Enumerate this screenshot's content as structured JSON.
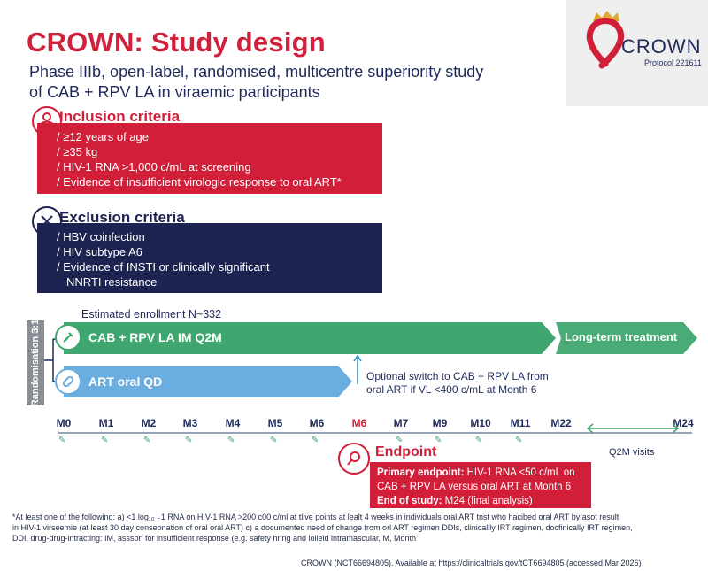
{
  "header": {
    "title": "CROWN: Study design",
    "subtitle_line1": "Phase IIIb, open-label, randomised, multicentre superiority study",
    "subtitle_line2": "of CAB + RPV LA in  viraemic participants"
  },
  "logo": {
    "name": "CROWN",
    "protocol": "Protocol 221611"
  },
  "inclusion": {
    "title": "Inclusion criteria",
    "items": [
      "≥12 years of age",
      "≥35 kg",
      "HIV-1 RNA >1,000 c/mL at screening",
      "Evidence of insufficient virologic response to oral ART*"
    ]
  },
  "exclusion": {
    "title": "Exclusion criteria",
    "items": [
      "HBV coinfection",
      "HIV subtype A6",
      "Evidence of INSTI or clinically significant",
      "NNRTI resistance"
    ]
  },
  "timeline": {
    "randomisation": "Randomisation 3:1",
    "enrollment": "Estimated enrollment N~332",
    "arm1": "CAB + RPV LA IM Q2M",
    "arm1_extension": "Long-term treatment",
    "arm2": "ART oral QD",
    "switch_line1": "Optional switch to CAB + RPV LA from",
    "switch_line2": "oral ART if VL <400 c/mL at Month 6",
    "ticks": [
      "M0",
      "M1",
      "M2",
      "M3",
      "M4",
      "M5",
      "M6",
      "M6",
      "M7",
      "M9",
      "M10",
      "M11",
      "M22",
      "M24"
    ],
    "q2m": "Q2M visits"
  },
  "endpoint": {
    "title": "Endpoint",
    "primary_label": "Primary endpoint:",
    "primary_text1": " HIV-1 RNA <50 c/mL on",
    "primary_text2": "CAB + RPV LA versus oral ART at Month 6",
    "end_label": "End of study:",
    "end_text": " M24 (final analysis)"
  },
  "footnote": {
    "line1": "*At least one of the following: a) <1 log₁₀ ₋1 RNA on HIV-1 RNA >200 c00 c/ml at tlive points at lealt 4 weeks in individuals oral ART tnst who hacibed oral ART by asot result",
    "line2": "in HIV-1 virseemie (at least 30 day conseonation of oral oral ART) c) a documented need of change from orl ART regimen DDIs, clinicallly IRT regimen, docfinically IRT regimen,",
    "line3": "DDI, drug-drug-intracting: IM, assson for insufficient response (e.g. safety hring and lolleid intramascular, M, Month",
    "citation": "CROWN (NCT66694805). Available at https://clinicaltrials.gov/tCT6694805 (accessed Mar 2026)"
  },
  "colors": {
    "red": "#d11f3a",
    "navy": "#1d2451",
    "green": "#3fa66f",
    "blue": "#6aaee0"
  }
}
